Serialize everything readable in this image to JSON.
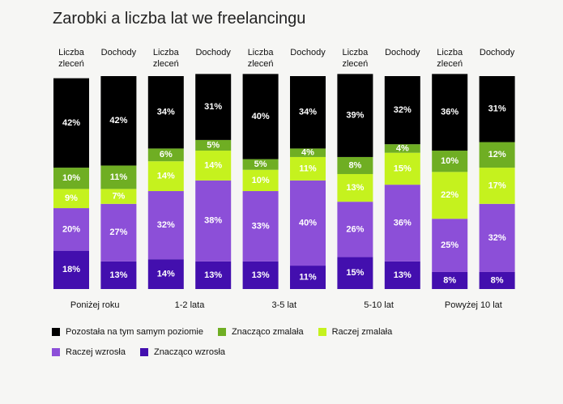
{
  "chart_data": {
    "type": "stacked_bar",
    "title": "Zarobki a liczba lat we freelancingu",
    "categories": [
      "Liczba zleceń",
      "Dochody",
      "Liczba zleceń",
      "Dochody",
      "Liczba zleceń",
      "Dochody",
      "Liczba zleceń",
      "Dochody",
      "Liczba zleceń",
      "Dochody"
    ],
    "groups": [
      "Poniżej roku",
      "1-2 lata",
      "3-5 lat",
      "5-10 lat",
      "Powyżej 10 lat"
    ],
    "series": [
      {
        "name": "Pozostała na tym samym poziomie",
        "color": "#000000",
        "values": [
          42,
          42,
          34,
          31,
          40,
          34,
          39,
          32,
          36,
          31
        ],
        "value_labels": [
          "42%",
          "42%",
          "34%",
          "31%",
          "40%",
          "34%",
          "39%",
          "32%",
          "36%",
          "31%"
        ]
      },
      {
        "name": "Znacząco zmalała",
        "color": "#6fae23",
        "values": [
          10,
          11,
          6,
          5,
          5,
          4,
          8,
          4,
          10,
          12
        ],
        "value_labels": [
          "10%",
          "11%",
          "6%",
          "5%",
          "5%",
          "4%",
          "8%",
          "4%",
          "10%",
          "12%"
        ]
      },
      {
        "name": "Raczej zmalała",
        "color": "#c5f21e",
        "values": [
          9,
          7,
          14,
          14,
          10,
          11,
          13,
          15,
          22,
          17
        ],
        "value_labels": [
          "9%",
          "7%",
          "14%",
          "14%",
          "10%",
          "11%",
          "13%",
          "15%",
          "22%",
          "17%"
        ]
      },
      {
        "name": "Raczej wzrosła",
        "color": "#8c4fd8",
        "values": [
          20,
          27,
          32,
          38,
          33,
          40,
          26,
          36,
          25,
          32
        ],
        "value_labels": [
          "20%",
          "27%",
          "32%",
          "38%",
          "33%",
          "40%",
          "26%",
          "36%",
          "25%",
          "32%"
        ]
      },
      {
        "name": "Znacząco wzrosła",
        "color": "#430fae",
        "values": [
          18,
          13,
          14,
          13,
          13,
          11,
          15,
          13,
          8,
          8
        ],
        "value_labels": [
          "18%",
          "13%",
          "14%",
          "13%",
          "13%",
          "11%",
          "15%",
          "13%",
          "8%",
          "8%"
        ]
      }
    ]
  }
}
